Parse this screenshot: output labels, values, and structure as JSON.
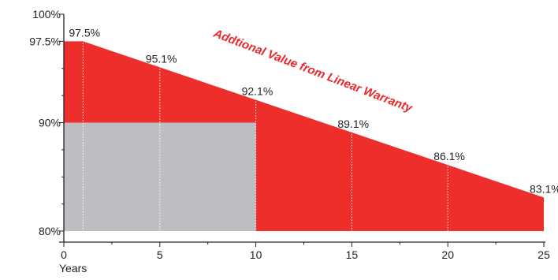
{
  "chart_data": {
    "type": "area",
    "xlabel": "Years",
    "ylabel": "",
    "xlim": [
      0,
      25
    ],
    "ylim": [
      80,
      100
    ],
    "x_ticks": [
      0,
      5,
      10,
      15,
      20,
      25
    ],
    "x_tick_labels": [
      "0",
      "5",
      "10",
      "15",
      "20",
      "25"
    ],
    "y_ticks": [
      80,
      90,
      97.5,
      100
    ],
    "y_tick_labels": [
      "80%",
      "90%",
      "97.5%",
      "100%"
    ],
    "linear_warranty": {
      "x": [
        0,
        1,
        25
      ],
      "y": [
        97.5,
        97.5,
        83.1
      ]
    },
    "step_warranty": {
      "x": [
        0,
        10,
        10,
        25
      ],
      "y": [
        90,
        90,
        80,
        80
      ]
    },
    "data_labels": [
      {
        "x": 1,
        "y": 97.5,
        "text": "97.5%"
      },
      {
        "x": 5,
        "y": 95.1,
        "text": "95.1%"
      },
      {
        "x": 10,
        "y": 92.1,
        "text": "92.1%"
      },
      {
        "x": 15,
        "y": 89.1,
        "text": "89.1%"
      },
      {
        "x": 20,
        "y": 86.1,
        "text": "86.1%"
      },
      {
        "x": 25,
        "y": 83.1,
        "text": "83.1%"
      }
    ],
    "annotation": "Addtional Value from Linear Warranty",
    "colors": {
      "linear_area": "#ee2e2b",
      "step_area": "#bdbec1",
      "dotted_lines": "#ffffff",
      "axis": "#222222",
      "annotation": "#e8282a"
    }
  }
}
